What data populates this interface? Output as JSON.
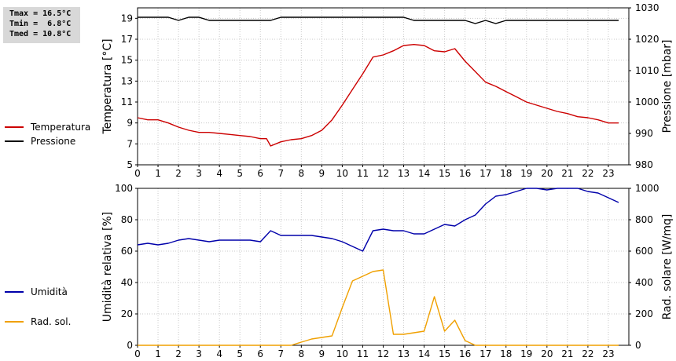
{
  "stats": {
    "tmax": "Tmax = 16.5°C",
    "tmin": "Tmin =  6.8°C",
    "tmed": "Tmed = 10.8°C"
  },
  "legend_top": [
    {
      "label": "Temperatura",
      "color": "#cc0000"
    },
    {
      "label": "Pressione",
      "color": "#000000"
    }
  ],
  "legend_bottom": [
    {
      "label": "Umidità",
      "color": "#0000aa"
    },
    {
      "label": "Rad. sol.",
      "color": "#f0a000"
    }
  ],
  "chart_data": [
    {
      "type": "line",
      "xlabel": "",
      "xlim": [
        0,
        24
      ],
      "x_ticks": [
        "0",
        "1",
        "2",
        "3",
        "4",
        "5",
        "6",
        "7",
        "8",
        "9",
        "10",
        "11",
        "12",
        "13",
        "14",
        "15",
        "16",
        "17",
        "18",
        "19",
        "20",
        "21",
        "22",
        "23"
      ],
      "ylabel_left": "Temperatura [°C]",
      "ylim_left": [
        5,
        20
      ],
      "yticks_left": [
        5,
        7,
        9,
        11,
        13,
        15,
        17,
        19
      ],
      "ylabel_right": "Pressione [mbar]",
      "ylim_right": [
        980,
        1030
      ],
      "yticks_right": [
        980,
        990,
        1000,
        1010,
        1020,
        1030
      ],
      "grid": true,
      "series": [
        {
          "name": "Temperatura",
          "axis": "left",
          "color": "#cc0000",
          "x": [
            0,
            0.5,
            1,
            1.5,
            2,
            2.5,
            3,
            3.5,
            4,
            4.5,
            5,
            5.5,
            6,
            6.3,
            6.5,
            7,
            7.5,
            8,
            8.5,
            9,
            9.5,
            10,
            10.5,
            11,
            11.5,
            12,
            12.5,
            13,
            13.5,
            14,
            14.5,
            15,
            15.5,
            16,
            16.5,
            17,
            17.5,
            18,
            18.5,
            19,
            19.5,
            20,
            20.5,
            21,
            21.5,
            22,
            22.5,
            23,
            23.5
          ],
          "y": [
            9.5,
            9.3,
            9.3,
            9.0,
            8.6,
            8.3,
            8.1,
            8.1,
            8.0,
            7.9,
            7.8,
            7.7,
            7.5,
            7.5,
            6.8,
            7.2,
            7.4,
            7.5,
            7.8,
            8.3,
            9.3,
            10.7,
            12.2,
            13.7,
            15.3,
            15.5,
            15.9,
            16.4,
            16.5,
            16.4,
            15.9,
            15.8,
            16.1,
            14.9,
            13.9,
            12.9,
            12.5,
            12.0,
            11.5,
            11.0,
            10.7,
            10.4,
            10.1,
            9.9,
            9.6,
            9.5,
            9.3,
            9.0,
            9.0
          ]
        },
        {
          "name": "Pressione",
          "axis": "right",
          "color": "#000000",
          "x": [
            0,
            0.5,
            1,
            1.5,
            2,
            2.5,
            3,
            3.5,
            4,
            5,
            6,
            6.5,
            7,
            8,
            9,
            10,
            11,
            12,
            13,
            13.5,
            14,
            15,
            16,
            16.5,
            17,
            17.5,
            18,
            19,
            20,
            21,
            22,
            23,
            23.5
          ],
          "y": [
            1027,
            1027,
            1027,
            1027,
            1026,
            1027,
            1027,
            1026,
            1026,
            1026,
            1026,
            1026,
            1027,
            1027,
            1027,
            1027,
            1027,
            1027,
            1027,
            1026,
            1026,
            1026,
            1026,
            1025,
            1026,
            1025,
            1026,
            1026,
            1026,
            1026,
            1026,
            1026,
            1026
          ]
        }
      ]
    },
    {
      "type": "line",
      "xlabel": "",
      "xlim": [
        0,
        24
      ],
      "x_ticks": [
        "0",
        "1",
        "2",
        "3",
        "4",
        "5",
        "6",
        "7",
        "8",
        "9",
        "10",
        "11",
        "12",
        "13",
        "14",
        "15",
        "16",
        "17",
        "18",
        "19",
        "20",
        "21",
        "22",
        "23"
      ],
      "ylabel_left": "Umidità relativa [%]",
      "ylim_left": [
        0,
        100
      ],
      "yticks_left": [
        0,
        20,
        40,
        60,
        80,
        100
      ],
      "ylabel_right": "Rad. solare [W/mq]",
      "ylim_right": [
        0,
        1000
      ],
      "yticks_right": [
        0,
        200,
        400,
        600,
        800,
        1000
      ],
      "grid": true,
      "series": [
        {
          "name": "Umidità",
          "axis": "left",
          "color": "#0000aa",
          "x": [
            0,
            0.5,
            1,
            1.5,
            2,
            2.5,
            3,
            3.5,
            4,
            5,
            5.5,
            6,
            6.5,
            7,
            8,
            8.5,
            9,
            9.5,
            10,
            10.5,
            11,
            11.5,
            12,
            12.5,
            13,
            13.5,
            14,
            14.5,
            15,
            15.5,
            16,
            16.5,
            17,
            17.5,
            18,
            18.5,
            19,
            19.5,
            20,
            20.5,
            21,
            21.5,
            22,
            22.5,
            23,
            23.5
          ],
          "y": [
            64,
            65,
            64,
            65,
            67,
            68,
            67,
            66,
            67,
            67,
            67,
            66,
            73,
            70,
            70,
            70,
            69,
            68,
            66,
            63,
            60,
            73,
            74,
            73,
            73,
            71,
            71,
            74,
            77,
            76,
            80,
            83,
            90,
            95,
            96,
            98,
            100,
            100,
            99,
            100,
            100,
            100,
            98,
            97,
            94,
            91
          ]
        },
        {
          "name": "Rad. sol.",
          "axis": "right",
          "color": "#f0a000",
          "x": [
            0,
            1,
            2,
            3,
            4,
            5,
            6,
            7,
            7.5,
            8,
            8.5,
            9,
            9.5,
            10,
            10.5,
            11,
            11.5,
            12,
            12.5,
            13,
            13.5,
            14,
            14.5,
            15,
            15.5,
            16,
            16.5,
            17,
            18,
            19,
            20,
            21,
            22,
            23,
            23.5
          ],
          "y": [
            0,
            0,
            0,
            0,
            0,
            0,
            0,
            0,
            0,
            20,
            40,
            50,
            60,
            240,
            410,
            440,
            470,
            480,
            70,
            70,
            80,
            90,
            310,
            90,
            160,
            30,
            0,
            0,
            0,
            0,
            0,
            0,
            0,
            0,
            0
          ]
        }
      ]
    }
  ]
}
